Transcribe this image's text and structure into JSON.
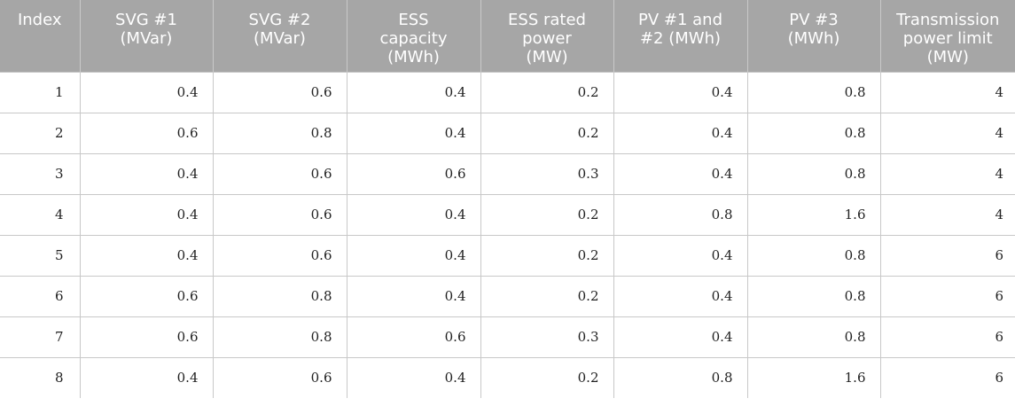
{
  "table": {
    "headers": [
      "Index",
      "SVG #1\n(MVar)",
      "SVG #2\n(MVar)",
      "ESS\ncapacity\n(MWh)",
      "ESS rated\npower\n(MW)",
      "PV #1 and\n#2 (MWh)",
      "PV #3\n(MWh)",
      "Transmission\npower limit\n(MW)"
    ],
    "rows": [
      [
        "1",
        "0.4",
        "0.6",
        "0.4",
        "0.2",
        "0.4",
        "0.8",
        "4"
      ],
      [
        "2",
        "0.6",
        "0.8",
        "0.4",
        "0.2",
        "0.4",
        "0.8",
        "4"
      ],
      [
        "3",
        "0.4",
        "0.6",
        "0.6",
        "0.3",
        "0.4",
        "0.8",
        "4"
      ],
      [
        "4",
        "0.4",
        "0.6",
        "0.4",
        "0.2",
        "0.8",
        "1.6",
        "4"
      ],
      [
        "5",
        "0.4",
        "0.6",
        "0.4",
        "0.2",
        "0.4",
        "0.8",
        "6"
      ],
      [
        "6",
        "0.6",
        "0.8",
        "0.4",
        "0.2",
        "0.4",
        "0.8",
        "6"
      ],
      [
        "7",
        "0.6",
        "0.8",
        "0.6",
        "0.3",
        "0.4",
        "0.8",
        "6"
      ],
      [
        "8",
        "0.4",
        "0.6",
        "0.4",
        "0.2",
        "0.8",
        "1.6",
        "6"
      ]
    ]
  },
  "colors": {
    "header_background": "#a6a6a6",
    "header_text": "#ffffff",
    "grid_lines": "#c8c8c8"
  }
}
